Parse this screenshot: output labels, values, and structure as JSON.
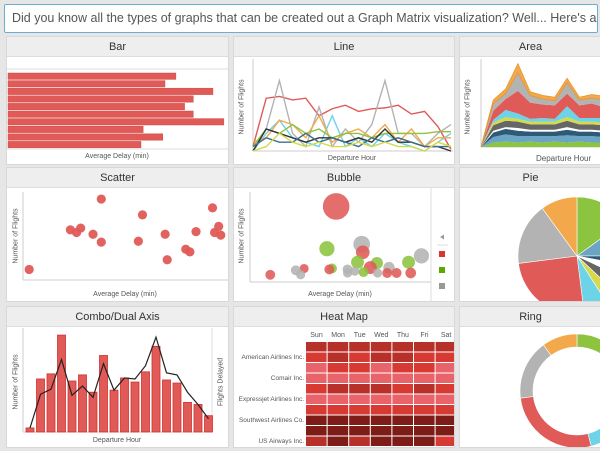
{
  "hint_text": "Did you know all the types of graphs that can be created out a Graph Matrix visualization? Well... Here's a hint",
  "colors": {
    "red": "#e05a57",
    "gray": "#b3b3b3",
    "cyan": "#6dd3e6",
    "orange": "#f3a84c",
    "green": "#8cc43f",
    "black": "#333333",
    "darkblue": "#3f6f8f",
    "yellow": "#d5d94a",
    "blue": "#6aa6c4",
    "navy": "#2e5a78",
    "white": "#ffffff",
    "darkgray": "#666666"
  },
  "panels": {
    "bar": {
      "title": "Bar",
      "xlabel": "Average Delay (min)"
    },
    "line": {
      "title": "Line",
      "xlabel": "Departure Hour",
      "ylabel": "Number of Flights"
    },
    "area": {
      "title": "Area",
      "xlabel": "Departure Hour",
      "ylabel": "Number of Flights"
    },
    "scatter": {
      "title": "Scatter",
      "xlabel": "Average Delay (min)",
      "ylabel": "Number of Flights"
    },
    "bubble": {
      "title": "Bubble",
      "xlabel": "Average Delay (min)",
      "ylabel": "Number of Flights"
    },
    "pie": {
      "title": "Pie"
    },
    "combo": {
      "title": "Combo/Dual Axis",
      "xlabel": "Departure Hour",
      "ylabel": "Number of Flights",
      "ylabel2": "Flights Delayed"
    },
    "heatmap": {
      "title": "Heat Map"
    },
    "ring": {
      "title": "Ring"
    }
  },
  "chart_data": [
    {
      "type": "bar",
      "name": "Bar",
      "orientation": "horizontal",
      "values": [
        77,
        72,
        94,
        85,
        81,
        85,
        99,
        62,
        71,
        61
      ],
      "xlim": [
        0,
        100
      ]
    },
    {
      "type": "line",
      "name": "Line",
      "x_count": 16,
      "series": [
        {
          "color": "red",
          "values": [
            5,
            60,
            62,
            58,
            60,
            40,
            48,
            52,
            45,
            48,
            49,
            52,
            42,
            45,
            28,
            2
          ]
        },
        {
          "color": "gray",
          "values": [
            5,
            25,
            80,
            20,
            5,
            50,
            5,
            25,
            10,
            30,
            80,
            20,
            20,
            5,
            20,
            30
          ]
        },
        {
          "color": "cyan",
          "values": [
            0,
            20,
            35,
            15,
            10,
            5,
            40,
            5,
            15,
            5,
            20,
            10,
            5,
            0,
            10,
            20
          ]
        },
        {
          "color": "orange",
          "values": [
            10,
            15,
            35,
            30,
            15,
            40,
            10,
            20,
            25,
            15,
            30,
            10,
            25,
            5,
            15,
            15
          ]
        },
        {
          "color": "green",
          "values": [
            5,
            25,
            20,
            30,
            20,
            25,
            15,
            20,
            20,
            15,
            20,
            20,
            20,
            20,
            22,
            22
          ]
        },
        {
          "color": "black",
          "values": [
            0,
            25,
            20,
            15,
            10,
            15,
            15,
            10,
            15,
            10,
            25,
            10,
            10,
            5,
            5,
            0
          ]
        },
        {
          "color": "darkblue",
          "values": [
            5,
            15,
            10,
            10,
            20,
            10,
            15,
            10,
            5,
            15,
            10,
            15,
            10,
            5,
            5,
            5
          ]
        },
        {
          "color": "yellow",
          "values": [
            0,
            5,
            20,
            10,
            5,
            10,
            5,
            5,
            10,
            5,
            10,
            5,
            5,
            0,
            10,
            5
          ]
        }
      ],
      "ylim": [
        0,
        100
      ]
    },
    {
      "type": "area",
      "name": "Area",
      "stacked": true,
      "series": [
        {
          "color": "green",
          "values": [
            0,
            5,
            6,
            5,
            6,
            5,
            6,
            5,
            6,
            5,
            5,
            6,
            5,
            4,
            5,
            4
          ]
        },
        {
          "color": "blue",
          "values": [
            0,
            6,
            8,
            7,
            6,
            7,
            6,
            8,
            6,
            7,
            6,
            7,
            6,
            5,
            6,
            5
          ]
        },
        {
          "color": "navy",
          "values": [
            0,
            5,
            6,
            6,
            5,
            5,
            5,
            6,
            5,
            5,
            5,
            5,
            4,
            4,
            4,
            4
          ]
        },
        {
          "color": "white",
          "values": [
            0,
            2,
            2,
            3,
            2,
            2,
            2,
            3,
            2,
            2,
            2,
            2,
            2,
            2,
            2,
            2
          ]
        },
        {
          "color": "darkgray",
          "values": [
            0,
            6,
            7,
            7,
            6,
            6,
            6,
            7,
            6,
            6,
            6,
            6,
            5,
            4,
            5,
            4
          ]
        },
        {
          "color": "yellow",
          "values": [
            0,
            3,
            4,
            3,
            3,
            3,
            3,
            4,
            3,
            3,
            3,
            3,
            3,
            2,
            3,
            2
          ]
        },
        {
          "color": "cyan",
          "values": [
            0,
            3,
            8,
            6,
            3,
            4,
            3,
            12,
            4,
            4,
            5,
            3,
            3,
            2,
            3,
            3
          ]
        },
        {
          "color": "red",
          "values": [
            0,
            10,
            12,
            25,
            18,
            15,
            15,
            14,
            14,
            16,
            12,
            14,
            12,
            10,
            10,
            8
          ]
        },
        {
          "color": "gray",
          "values": [
            0,
            8,
            6,
            20,
            8,
            6,
            5,
            12,
            6,
            6,
            8,
            6,
            6,
            5,
            5,
            5
          ]
        },
        {
          "color": "orange",
          "values": [
            0,
            4,
            5,
            10,
            4,
            4,
            4,
            5,
            3,
            4,
            4,
            3,
            3,
            3,
            3,
            3
          ]
        }
      ],
      "ylim": [
        0,
        95
      ]
    },
    {
      "type": "scatter",
      "name": "Scatter",
      "points": [
        [
          3,
          12
        ],
        [
          38,
          92
        ],
        [
          23,
          57
        ],
        [
          26,
          54
        ],
        [
          28,
          59
        ],
        [
          34,
          52
        ],
        [
          38,
          43
        ],
        [
          58,
          74
        ],
        [
          56,
          44
        ],
        [
          69,
          52
        ],
        [
          70,
          23
        ],
        [
          79,
          35
        ],
        [
          81,
          32
        ],
        [
          84,
          55
        ],
        [
          92,
          82
        ],
        [
          95,
          61
        ],
        [
          93,
          54
        ],
        [
          96,
          51
        ]
      ],
      "xlim": [
        0,
        100
      ],
      "ylim": [
        0,
        100
      ]
    },
    {
      "type": "scatter",
      "name": "Bubble",
      "points": [
        [
          47.6,
          84,
          35,
          "red"
        ],
        [
          42.5,
          37,
          20,
          "green"
        ],
        [
          61.7,
          42,
          22,
          "gray"
        ],
        [
          62.3,
          33,
          18,
          "red"
        ],
        [
          94.7,
          29,
          20,
          "gray"
        ],
        [
          59.4,
          22,
          17,
          "green"
        ],
        [
          70.1,
          21,
          16,
          "green"
        ],
        [
          87.6,
          22,
          17,
          "green"
        ],
        [
          66.5,
          16,
          17,
          "red"
        ],
        [
          76.8,
          16,
          15,
          "gray"
        ],
        [
          45.3,
          15,
          13,
          "green"
        ],
        [
          43.8,
          14,
          13,
          "red"
        ],
        [
          29.9,
          15,
          12,
          "red"
        ],
        [
          25.3,
          13,
          13,
          "gray"
        ],
        [
          28,
          8,
          12,
          "gray"
        ],
        [
          11.2,
          8,
          13,
          "red"
        ],
        [
          53.9,
          14,
          13,
          "gray"
        ],
        [
          53.9,
          10,
          12,
          "gray"
        ],
        [
          57.9,
          12,
          12,
          "gray"
        ],
        [
          62.7,
          11,
          13,
          "green"
        ],
        [
          70.5,
          10,
          12,
          "gray"
        ],
        [
          75.8,
          10,
          13,
          "red"
        ],
        [
          81,
          10,
          13,
          "red"
        ],
        [
          88.8,
          10,
          14,
          "red"
        ]
      ],
      "legend": [
        "red",
        "green",
        "gray"
      ],
      "xlim": [
        0,
        100
      ],
      "ylim": [
        0,
        100
      ]
    },
    {
      "type": "pie",
      "name": "Pie",
      "slices": [
        {
          "color": "green",
          "value": 15
        },
        {
          "color": "blue",
          "value": 10
        },
        {
          "color": "navy",
          "value": 3
        },
        {
          "color": "white",
          "value": 4
        },
        {
          "color": "darkgray",
          "value": 5
        },
        {
          "color": "yellow",
          "value": 4
        },
        {
          "color": "cyan",
          "value": 7
        },
        {
          "color": "red",
          "value": 25
        },
        {
          "color": "gray",
          "value": 17
        },
        {
          "color": "orange",
          "value": 10
        }
      ]
    },
    {
      "type": "bar",
      "name": "Combo/Dual Axis",
      "bars": [
        4,
        52,
        57,
        95,
        50,
        56,
        39,
        75,
        41,
        53,
        49,
        59,
        84,
        51,
        48,
        29,
        27,
        16
      ],
      "line": [
        4,
        37,
        42,
        71,
        36,
        45,
        34,
        67,
        41,
        53,
        52,
        65,
        93,
        58,
        56,
        39,
        27,
        13
      ],
      "ylim": [
        0,
        100
      ]
    },
    {
      "type": "heatmap",
      "name": "Heat Map",
      "columns": [
        "Sun",
        "Mon",
        "Tue",
        "Wed",
        "Thu",
        "Fri",
        "Sat"
      ],
      "row_labels": [
        "",
        "American Airlines Inc.",
        "",
        "Comair Inc.",
        "",
        "Expressjet Airlines Inc.",
        "",
        "Southwest Airlines Co.",
        "",
        "US Airways Inc."
      ],
      "levels": [
        [
          3,
          3,
          3,
          3,
          3,
          3,
          3
        ],
        [
          2,
          3,
          2,
          3,
          3,
          2,
          2
        ],
        [
          1,
          2,
          2,
          1,
          2,
          2,
          1
        ],
        [
          1,
          1,
          1,
          1,
          1,
          1,
          1
        ],
        [
          2,
          3,
          3,
          3,
          2,
          3,
          2
        ],
        [
          1,
          1,
          1,
          1,
          1,
          1,
          1
        ],
        [
          2,
          2,
          2,
          2,
          2,
          2,
          2
        ],
        [
          4,
          4,
          4,
          4,
          4,
          4,
          4
        ],
        [
          4,
          4,
          4,
          4,
          4,
          4,
          4
        ],
        [
          3,
          4,
          3,
          4,
          4,
          4,
          2
        ]
      ],
      "level_colors": [
        "#e8636a",
        "#d63a32",
        "#b8302a",
        "#7e1c18"
      ]
    },
    {
      "type": "pie",
      "name": "Ring",
      "donut": true,
      "slices": [
        {
          "color": "green",
          "value": 15
        },
        {
          "color": "blue",
          "value": 10
        },
        {
          "color": "navy",
          "value": 3
        },
        {
          "color": "white",
          "value": 4
        },
        {
          "color": "darkgray",
          "value": 5
        },
        {
          "color": "yellow",
          "value": 2
        },
        {
          "color": "cyan",
          "value": 7
        },
        {
          "color": "red",
          "value": 27
        },
        {
          "color": "gray",
          "value": 17
        },
        {
          "color": "orange",
          "value": 10
        }
      ]
    }
  ]
}
